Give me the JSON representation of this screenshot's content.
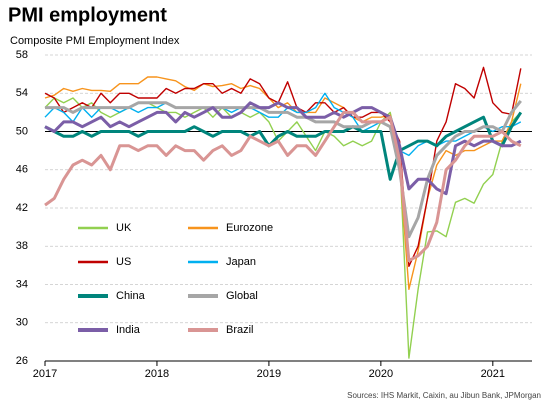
{
  "chart_data": {
    "type": "line",
    "title": "PMI employment",
    "subtitle": "Composite PMI Employment Index",
    "source": "Sources: IHS Markit, Caixin, au Jibun Bank, JPMorgan",
    "x": [
      2017.0,
      2017.083,
      2017.167,
      2017.25,
      2017.333,
      2017.417,
      2017.5,
      2017.583,
      2017.667,
      2017.75,
      2017.833,
      2017.917,
      2018.0,
      2018.083,
      2018.167,
      2018.25,
      2018.333,
      2018.417,
      2018.5,
      2018.583,
      2018.667,
      2018.75,
      2018.833,
      2018.917,
      2019.0,
      2019.083,
      2019.167,
      2019.25,
      2019.333,
      2019.417,
      2019.5,
      2019.583,
      2019.667,
      2019.75,
      2019.833,
      2019.917,
      2020.0,
      2020.083,
      2020.167,
      2020.25,
      2020.333,
      2020.417,
      2020.5,
      2020.583,
      2020.667,
      2020.75,
      2020.833,
      2020.917,
      2021.0,
      2021.083,
      2021.167,
      2021.25
    ],
    "xlim": [
      2017,
      2021.35
    ],
    "xticks": [
      2017,
      2018,
      2019,
      2020,
      2021
    ],
    "ylim": [
      26,
      58
    ],
    "yticks": [
      26,
      30,
      34,
      38,
      42,
      46,
      50,
      54,
      58
    ],
    "reference_line": 50,
    "grid": true,
    "series": [
      {
        "name": "UK",
        "color": "#92d050",
        "values": [
          52.5,
          53.5,
          53,
          53.5,
          52.5,
          53,
          52,
          51.5,
          52,
          52.5,
          53,
          53,
          52.5,
          52,
          52,
          51.5,
          52,
          52.5,
          51.5,
          52.5,
          51.5,
          52,
          51.5,
          52,
          51,
          49,
          50,
          51,
          49.5,
          48,
          50,
          49.5,
          48.5,
          49,
          48.5,
          49,
          51,
          52,
          47.5,
          26.3,
          33.5,
          39.5,
          39.6,
          39,
          42.6,
          43,
          42.5,
          44.5,
          45.5,
          49,
          51,
          52
        ]
      },
      {
        "name": "Eurozone",
        "color": "#f7941d",
        "values": [
          53.5,
          53.8,
          54.5,
          54.2,
          54.5,
          54.3,
          54.3,
          54.2,
          55,
          55,
          55,
          55.7,
          55.7,
          55.5,
          55.3,
          54.7,
          54.3,
          55,
          54.7,
          54.8,
          55,
          54.5,
          54.8,
          54.5,
          53.5,
          52.5,
          53,
          52,
          52,
          52,
          53.5,
          53,
          52.5,
          51.5,
          51,
          51.5,
          51.5,
          51.7,
          46.5,
          33.5,
          37.5,
          43,
          46.5,
          48,
          47.5,
          48,
          48,
          48.5,
          49,
          49,
          51,
          55
        ]
      },
      {
        "name": "US",
        "color": "#c00000",
        "values": [
          54,
          53.5,
          52,
          52.5,
          53,
          52.5,
          54,
          53,
          54,
          54,
          53.5,
          53.5,
          53.5,
          54.5,
          54,
          54.5,
          54.5,
          55,
          55,
          54,
          54.5,
          54,
          55.5,
          55,
          53.5,
          53,
          55.2,
          52.5,
          52,
          53,
          53,
          52,
          52.5,
          51.5,
          51.5,
          52,
          52,
          51,
          49,
          35.9,
          38,
          43,
          49,
          51,
          55,
          54.5,
          53.5,
          56.7,
          53,
          52,
          51.8,
          56.6
        ]
      },
      {
        "name": "Japan",
        "color": "#00b0f0",
        "values": [
          51.5,
          52.5,
          52,
          51,
          52.5,
          51.5,
          52.5,
          52.5,
          52,
          52.5,
          52,
          52.5,
          52.5,
          53,
          52.5,
          52.5,
          52.5,
          52.5,
          52.5,
          52.5,
          52,
          52.5,
          52.5,
          52,
          51.5,
          51.5,
          52.5,
          52,
          52,
          52.5,
          54,
          52.5,
          52,
          51.5,
          50,
          50.5,
          51,
          50.5,
          48,
          47.5,
          48.5,
          49,
          48.5,
          49,
          49,
          49.5,
          50,
          50.5,
          50,
          50.5,
          50.5,
          51
        ]
      },
      {
        "name": "China",
        "color": "#00857c",
        "values": [
          50.5,
          50,
          49.5,
          49.5,
          50,
          49.5,
          50,
          50,
          50,
          50,
          49.5,
          50,
          50,
          50,
          50,
          50,
          50.5,
          50,
          49.5,
          50,
          50,
          50,
          49.5,
          50,
          48.5,
          49.5,
          50,
          49.5,
          49.5,
          49.5,
          50,
          50,
          50,
          50.5,
          50,
          50,
          50,
          45,
          48,
          48.5,
          49,
          49,
          48.5,
          49.5,
          50,
          50.5,
          51,
          51.5,
          49,
          48.5,
          50.5,
          52
        ]
      },
      {
        "name": "Global",
        "color": "#a6a6a6",
        "values": [
          52.5,
          52.5,
          52.5,
          52,
          52.5,
          52.5,
          52.5,
          52.5,
          52.5,
          52.5,
          53,
          53,
          53,
          53,
          52.5,
          52.5,
          52.5,
          52.5,
          52.5,
          52.5,
          52.5,
          52.5,
          52.5,
          52.5,
          52,
          52,
          52,
          51.5,
          51.5,
          51,
          51,
          51,
          50.5,
          50.5,
          50.5,
          51,
          51,
          50.5,
          46,
          39,
          41,
          45,
          47.5,
          48.5,
          49.5,
          50,
          50,
          50.5,
          50.5,
          50,
          52,
          53.2
        ]
      },
      {
        "name": "India",
        "color": "#7b5ea7",
        "values": [
          50.5,
          50,
          51,
          51,
          50.5,
          51,
          51.5,
          50.5,
          51,
          50.5,
          51,
          51.5,
          52,
          52,
          51,
          52,
          51.5,
          52,
          52.5,
          51.5,
          51.5,
          52,
          53,
          52.5,
          52.5,
          53,
          52.5,
          52.5,
          51.5,
          51.5,
          51.5,
          52,
          51.5,
          52,
          52.5,
          52.5,
          52,
          51.5,
          48.5,
          44,
          45,
          45,
          44,
          43.5,
          48.5,
          49,
          48.5,
          49,
          49,
          48.5,
          48.5,
          49
        ]
      },
      {
        "name": "Brazil",
        "color": "#d99594",
        "values": [
          42.3,
          43,
          45,
          46.5,
          47,
          46.5,
          47.5,
          46,
          48.5,
          48.5,
          48,
          48.5,
          48.5,
          47.5,
          48.5,
          48,
          48,
          47,
          48,
          48.5,
          47.5,
          48,
          49.5,
          49,
          48.5,
          49,
          47.5,
          48.5,
          48.5,
          47.5,
          49,
          50.5,
          52,
          52,
          51,
          51,
          51,
          51.5,
          47,
          36.5,
          37,
          38,
          40.5,
          46,
          47,
          48.5,
          49.5,
          49.5,
          49.5,
          50,
          49,
          48.5
        ]
      }
    ]
  }
}
